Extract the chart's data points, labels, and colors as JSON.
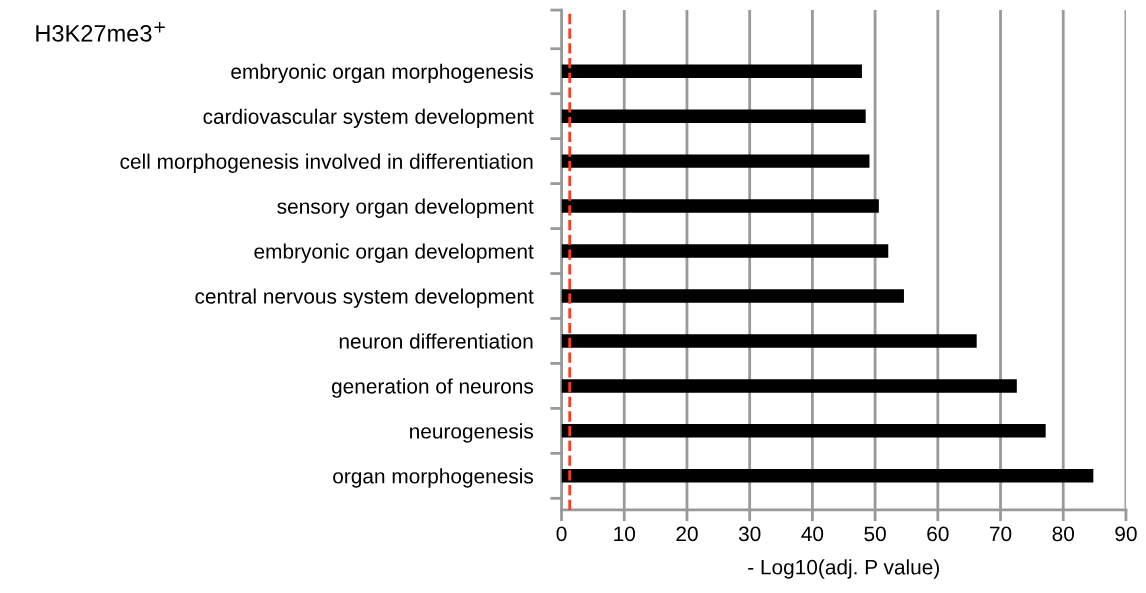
{
  "chart_data": {
    "type": "bar",
    "orientation": "horizontal",
    "title": "H3K27me3$^{+}$",
    "xlabel": "- Log10(adj. P value)",
    "categories": [
      "embryonic organ morphogenesis",
      "cardiovascular system development",
      "cell morphogenesis involved in differentiation",
      "sensory organ development",
      "embryonic organ development",
      "central nervous system development",
      "neuron differentiation",
      "generation of neurons",
      "neurogenesis",
      "organ morphogenesis"
    ],
    "values": [
      47.9,
      48.5,
      49.1,
      50.6,
      52.1,
      54.6,
      66.2,
      72.6,
      77.2,
      84.8
    ],
    "color": "#000000",
    "xlim": [
      0,
      90
    ],
    "xticks": [
      0,
      10,
      20,
      30,
      40,
      50,
      60,
      70,
      80,
      90
    ],
    "grid": "x",
    "ref_lines": [
      {
        "axis": "x",
        "value": 1.3,
        "color": "#ff3b1f",
        "line_style": "dashed"
      }
    ]
  }
}
